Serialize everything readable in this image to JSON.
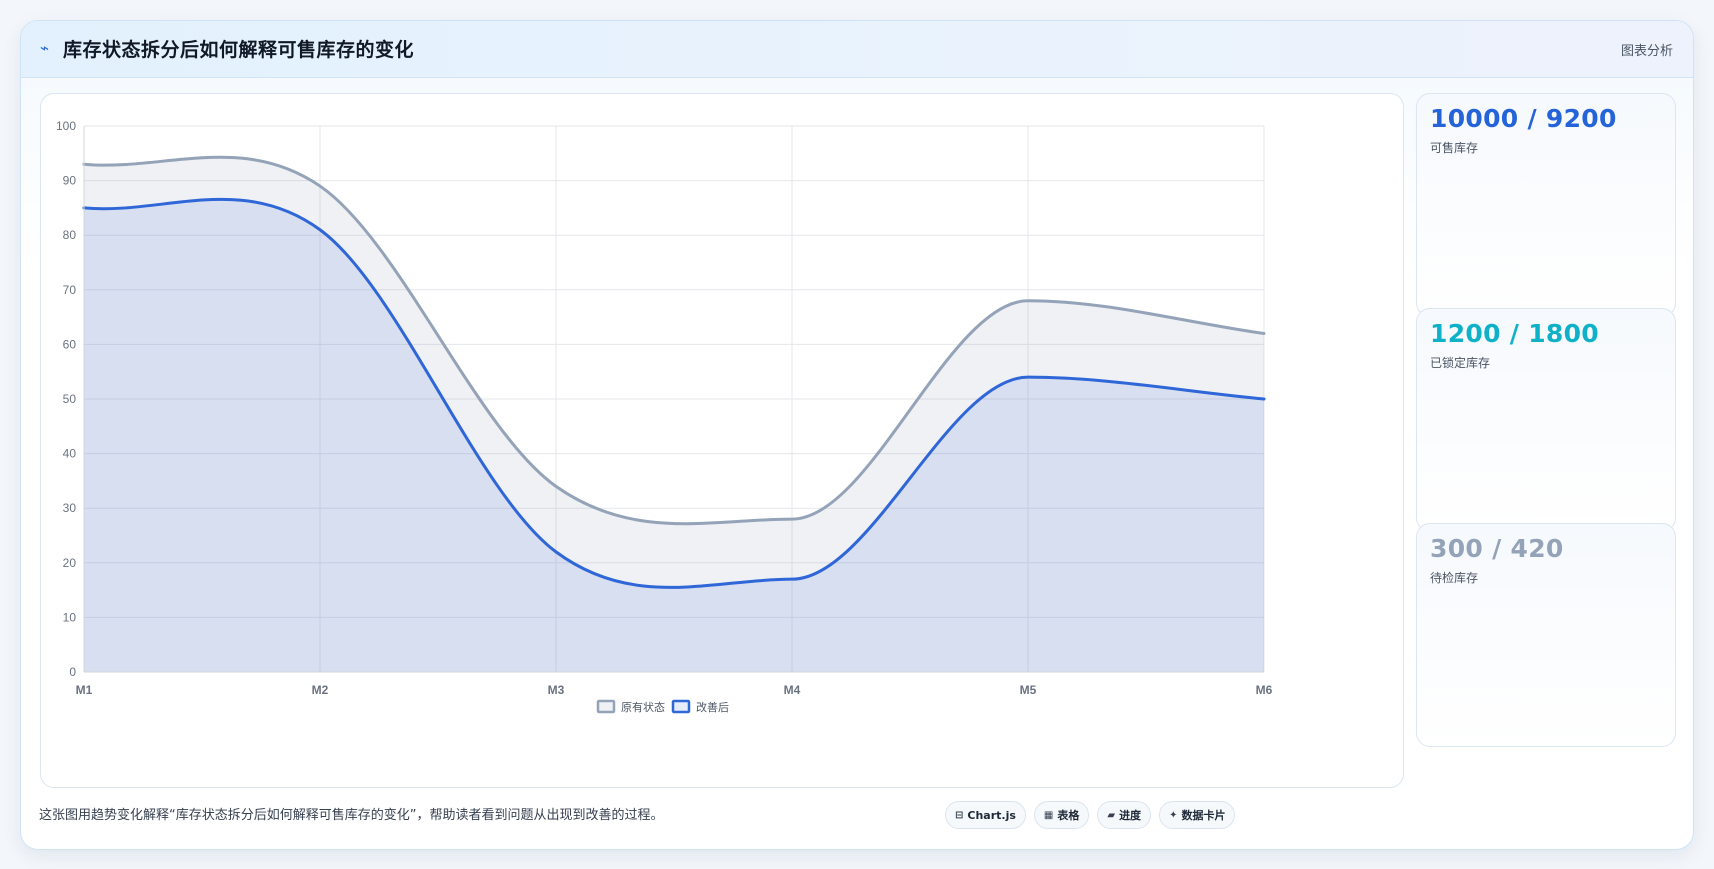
{
  "header": {
    "icon": "⌁",
    "title": "库存状态拆分后如何解释可售库存的变化",
    "chart_type_label": "图表分析"
  },
  "stats": [
    {
      "value": "10000 / 9200",
      "label": "可售库存",
      "color": "#2563d9"
    },
    {
      "value": "1200 / 1800",
      "label": "已锁定库存",
      "color": "#0fb1c8"
    },
    {
      "value": "300 / 420",
      "label": "待检库存",
      "color": "#94a3b8"
    }
  ],
  "footer": {
    "note": "这张图用趋势变化解释“库存状态拆分后如何解释可售库存的变化”，帮助读者看到问题从出现到改善的过程。",
    "tags": [
      {
        "icon": "⊟",
        "label": "Chart.js"
      },
      {
        "icon": "▦",
        "label": "表格"
      },
      {
        "icon": "▰",
        "label": "进度"
      },
      {
        "icon": "✦",
        "label": "数据卡片"
      }
    ]
  },
  "chart_data": {
    "type": "area",
    "categories": [
      "M1",
      "M2",
      "M3",
      "M4",
      "M5",
      "M6"
    ],
    "series": [
      {
        "name": "原有状态",
        "values": [
          93,
          89,
          34,
          28,
          68,
          62
        ],
        "color": "#94a3b8",
        "fill": "rgba(148,163,184,0.15)"
      },
      {
        "name": "改善后",
        "values": [
          85,
          81,
          22,
          17,
          54,
          50
        ],
        "color": "#2f66d8",
        "fill": "rgba(47,102,216,0.12)"
      }
    ],
    "ylim": [
      0,
      100
    ],
    "yticks": [
      0,
      10,
      20,
      30,
      40,
      50,
      60,
      70,
      80,
      90,
      100
    ],
    "grid": true,
    "legend_position": "bottom"
  }
}
